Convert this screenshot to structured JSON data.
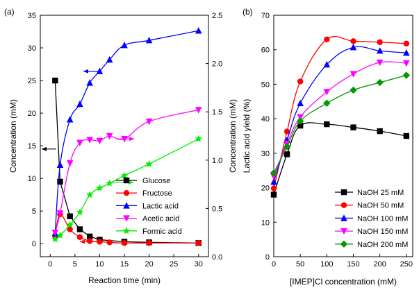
{
  "chart_data": [
    {
      "panel_label": "(a)",
      "type": "line",
      "xlabel": "Reaction time (min)",
      "ylabel": "Concentration (mM)",
      "y2label": "Concentration (mM)",
      "xlim": [
        -2,
        32
      ],
      "ylim": [
        -2,
        35
      ],
      "y2lim": [
        0,
        2.5
      ],
      "xticks": [
        0,
        5,
        10,
        15,
        20,
        25,
        30
      ],
      "yticks": [
        0,
        5,
        10,
        15,
        20,
        25,
        30,
        35
      ],
      "y2ticks": [
        0.0,
        0.5,
        1.0,
        1.5,
        2.0,
        2.5
      ],
      "legend_position": "bottom-right",
      "series": [
        {
          "name": "Glucose",
          "axis": "left",
          "color": "#000000",
          "marker": "square",
          "x": [
            1,
            2,
            4,
            6,
            8,
            10,
            15,
            20,
            30
          ],
          "y": [
            25.0,
            9.5,
            4.2,
            2.2,
            1.1,
            0.6,
            0.3,
            0.2,
            0.1
          ]
        },
        {
          "name": "Fructose",
          "axis": "left",
          "color": "#ff0000",
          "marker": "circle",
          "x": [
            1,
            2,
            4,
            6,
            8,
            10,
            12,
            15,
            20,
            30
          ],
          "y": [
            1.2,
            4.5,
            2.2,
            1.0,
            0.4,
            0.3,
            0.2,
            0.1,
            0.1,
            0.1
          ]
        },
        {
          "name": "Lactic acid",
          "axis": "right",
          "color": "#0000ff",
          "marker": "triangle",
          "x": [
            1,
            2,
            4,
            6,
            8,
            10,
            12,
            15,
            20,
            30
          ],
          "y": [
            0.24,
            0.95,
            1.42,
            1.58,
            1.8,
            1.92,
            2.04,
            2.19,
            2.24,
            2.34
          ]
        },
        {
          "name": "Acetic acid",
          "axis": "right",
          "color": "#ff00ff",
          "marker": "triangle-down",
          "x": [
            1,
            2,
            4,
            6,
            8,
            10,
            12,
            15,
            20,
            30
          ],
          "y": [
            0.25,
            0.45,
            0.97,
            1.18,
            1.21,
            1.2,
            1.25,
            1.22,
            1.4,
            1.52
          ]
        },
        {
          "name": "Formic acid",
          "axis": "right",
          "color": "#00ee00",
          "marker": "star",
          "x": [
            1,
            2,
            4,
            6,
            8,
            10,
            12,
            15,
            20,
            30
          ],
          "y": [
            0.18,
            0.22,
            0.33,
            0.46,
            0.64,
            0.71,
            0.76,
            0.84,
            0.96,
            1.22
          ]
        }
      ]
    },
    {
      "panel_label": "(b)",
      "type": "line",
      "xlabel": "[IMEP]Cl concentration (mM)",
      "ylabel": "Lactic acid yield (%)",
      "xlim": [
        0,
        262
      ],
      "ylim": [
        0,
        70
      ],
      "xticks": [
        0,
        50,
        100,
        150,
        200,
        250
      ],
      "yticks": [
        0,
        10,
        20,
        30,
        40,
        50,
        60,
        70
      ],
      "legend_position": "bottom-right",
      "series": [
        {
          "name": "NaOH 25 mM",
          "color": "#000000",
          "marker": "square",
          "x": [
            0,
            25,
            50,
            100,
            150,
            200,
            250
          ],
          "y": [
            18.0,
            29.7,
            38.0,
            38.4,
            37.5,
            36.4,
            35.0
          ]
        },
        {
          "name": "NaOH 50 mM",
          "color": "#ff0000",
          "marker": "circle",
          "x": [
            0,
            25,
            50,
            100,
            150,
            200,
            250
          ],
          "y": [
            19.8,
            36.3,
            50.8,
            63.0,
            62.5,
            62.2,
            61.8
          ]
        },
        {
          "name": "NaOH 100 mM",
          "color": "#0000ff",
          "marker": "triangle",
          "x": [
            0,
            25,
            50,
            100,
            150,
            200,
            250
          ],
          "y": [
            21.7,
            33.8,
            44.5,
            55.7,
            60.7,
            59.7,
            59.1
          ]
        },
        {
          "name": "NaOH 150 mM",
          "color": "#ff00ff",
          "marker": "triangle-down",
          "x": [
            0,
            25,
            50,
            100,
            150,
            200,
            250
          ],
          "y": [
            23.3,
            32.8,
            40.5,
            47.8,
            53.0,
            56.3,
            56.1
          ]
        },
        {
          "name": "NaOH 200 mM",
          "color": "#009900",
          "marker": "diamond",
          "x": [
            0,
            25,
            50,
            100,
            150,
            200,
            250
          ],
          "y": [
            24.3,
            31.9,
            39.3,
            44.5,
            48.3,
            50.5,
            52.6
          ]
        }
      ]
    }
  ]
}
